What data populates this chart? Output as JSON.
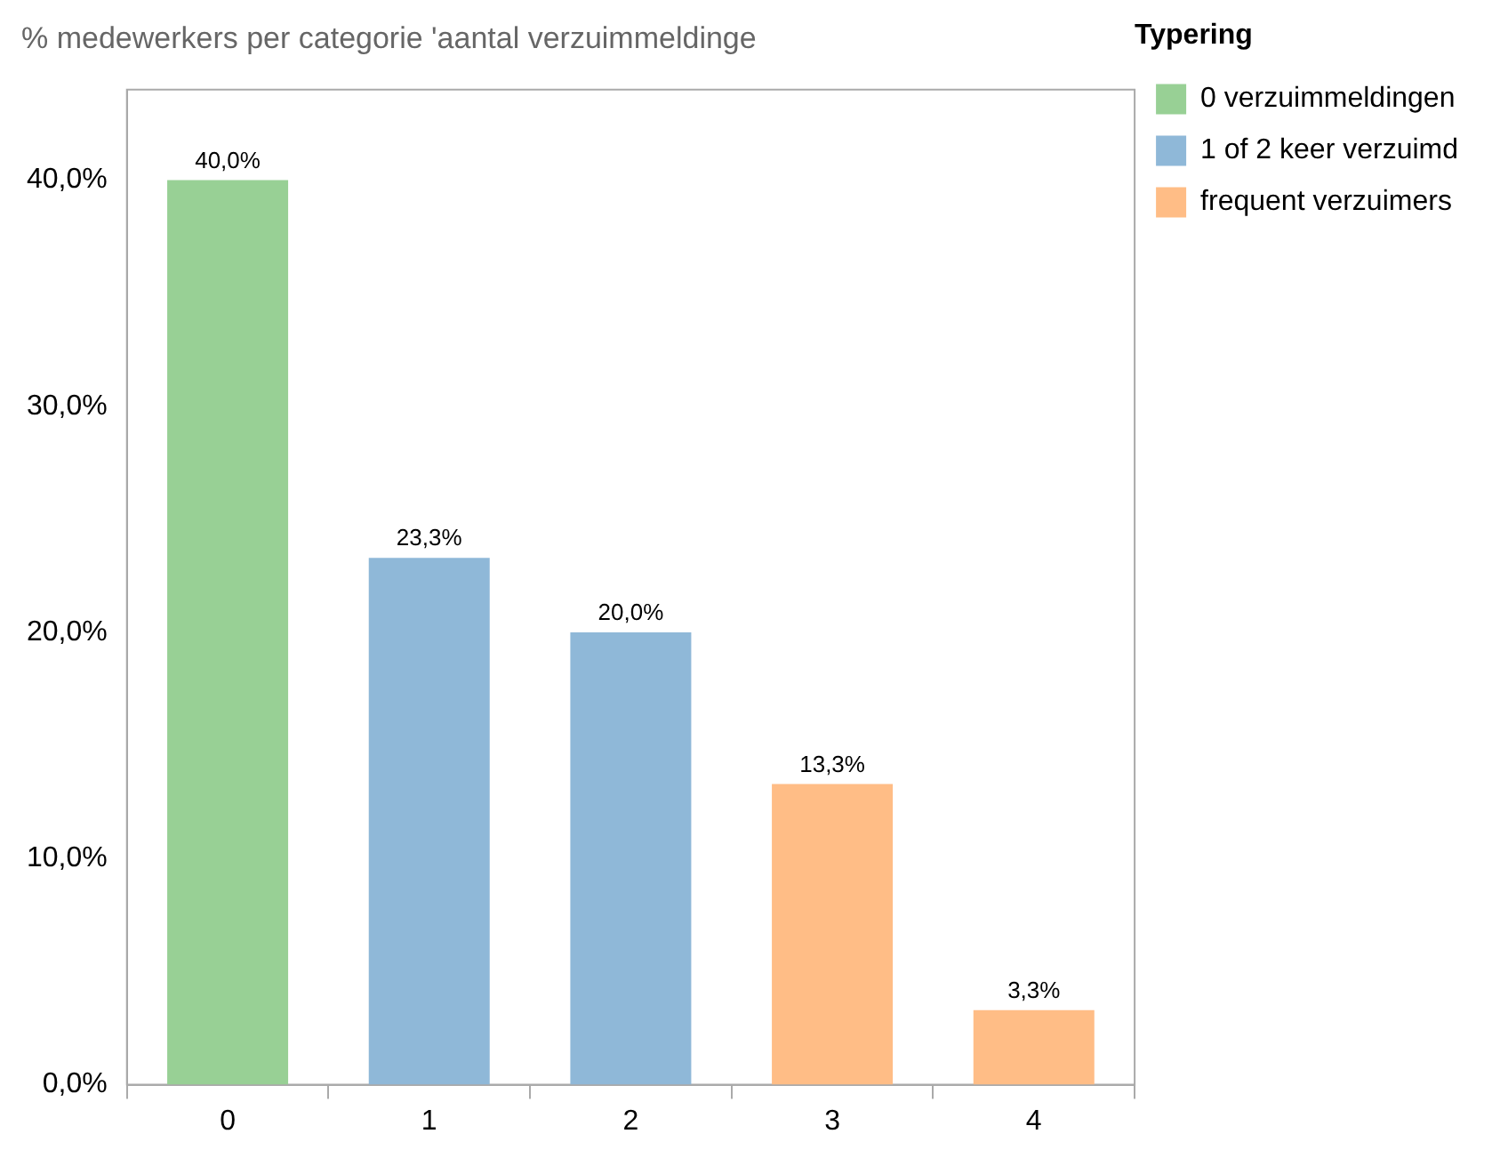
{
  "chart_data": {
    "type": "bar",
    "title": "% medewerkers per categorie 'aantal verzuimmeldinge",
    "categories": [
      "0",
      "1",
      "2",
      "3",
      "4"
    ],
    "legend_title": "Typering",
    "legend": "top right",
    "series": [
      {
        "name": "0 verzuimmeldingen",
        "color": "#98d095",
        "values": [
          40.0,
          null,
          null,
          null,
          null
        ],
        "value_labels": [
          "40,0%",
          null,
          null,
          null,
          null
        ]
      },
      {
        "name": "1 of 2 keer verzuimd",
        "color": "#8fb8d8",
        "values": [
          null,
          23.3,
          20.0,
          null,
          null
        ],
        "value_labels": [
          null,
          "23,3%",
          "20,0%",
          null,
          null
        ]
      },
      {
        "name": "frequent verzuimers",
        "color": "#ffbd86",
        "values": [
          null,
          null,
          null,
          13.3,
          3.3
        ],
        "value_labels": [
          null,
          null,
          null,
          "13,3%",
          "3,3%"
        ]
      }
    ],
    "ylim": [
      0,
      44
    ],
    "yticks": [
      {
        "value": 0,
        "label": "0,0%"
      },
      {
        "value": 10,
        "label": "10,0%"
      },
      {
        "value": 20,
        "label": "20,0%"
      },
      {
        "value": 30,
        "label": "30,0%"
      },
      {
        "value": 40,
        "label": "40,0%"
      }
    ]
  }
}
